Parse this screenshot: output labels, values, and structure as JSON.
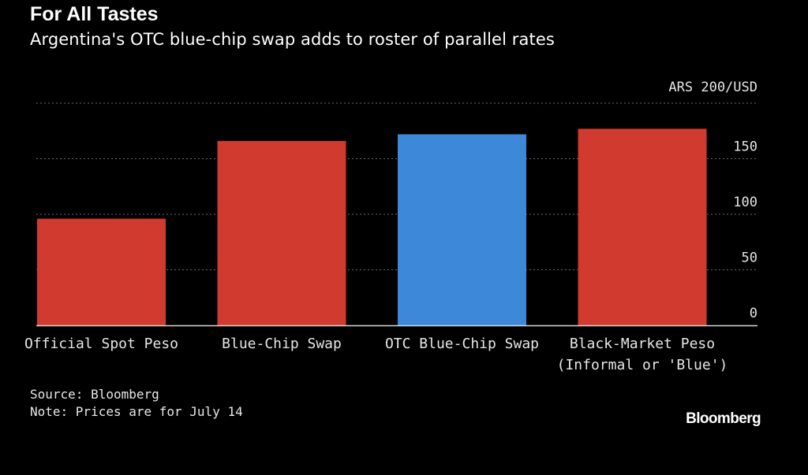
{
  "header": {
    "title": "For All Tastes",
    "subtitle": "Argentina's OTC blue-chip swap adds to roster of parallel rates"
  },
  "footer": {
    "source": "Source: Bloomberg",
    "note": "Note: Prices are for July 14"
  },
  "brand": "Bloomberg",
  "chart_data": {
    "type": "bar",
    "title": "For All Tastes",
    "subtitle": "Argentina's OTC blue-chip swap adds to roster of parallel rates",
    "unit_label": "ARS 200/USD",
    "categories": [
      [
        "Official Spot Peso"
      ],
      [
        "Blue-Chip Swap"
      ],
      [
        "OTC Blue-Chip Swap"
      ],
      [
        "Black-Market Peso",
        "(Informal or 'Blue')"
      ]
    ],
    "values": [
      96,
      166,
      172,
      177
    ],
    "bar_colors": [
      "#d13a2f",
      "#d13a2f",
      "#3d88d8",
      "#d13a2f"
    ],
    "yticks": [
      0,
      50,
      100,
      150,
      200
    ],
    "ylim": [
      0,
      200
    ],
    "grid": true,
    "grid_color": "#6b6b6b",
    "axis_side": "right"
  }
}
